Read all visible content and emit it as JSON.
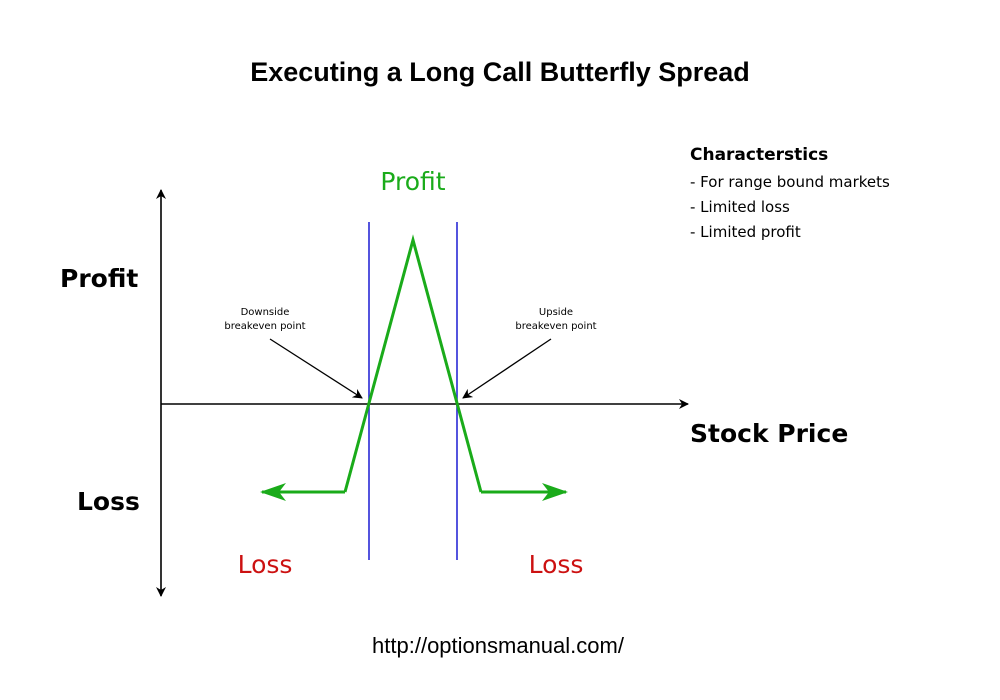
{
  "title": "Executing a Long Call Butterfly Spread",
  "axes": {
    "y_top_label": "Profit",
    "y_bottom_label": "Loss",
    "x_label": "Stock Price"
  },
  "zones": {
    "profit": "Profit",
    "loss_left": "Loss",
    "loss_right": "Loss"
  },
  "annotations": {
    "downside": [
      "Downside",
      "breakeven point"
    ],
    "upside": [
      "Upside",
      "breakeven point"
    ]
  },
  "characteristics": {
    "heading": "Characterstics",
    "items": [
      "- For range bound markets",
      "- Limited loss",
      "- Limited profit"
    ]
  },
  "footer_url": "http://optionsmanual.com/",
  "colors": {
    "payoff_line": "#1aab1a",
    "breakeven_lines": "#2a2ad6",
    "profit_text": "#1aab1a",
    "loss_text": "#cc1111",
    "axes": "#000000"
  }
}
